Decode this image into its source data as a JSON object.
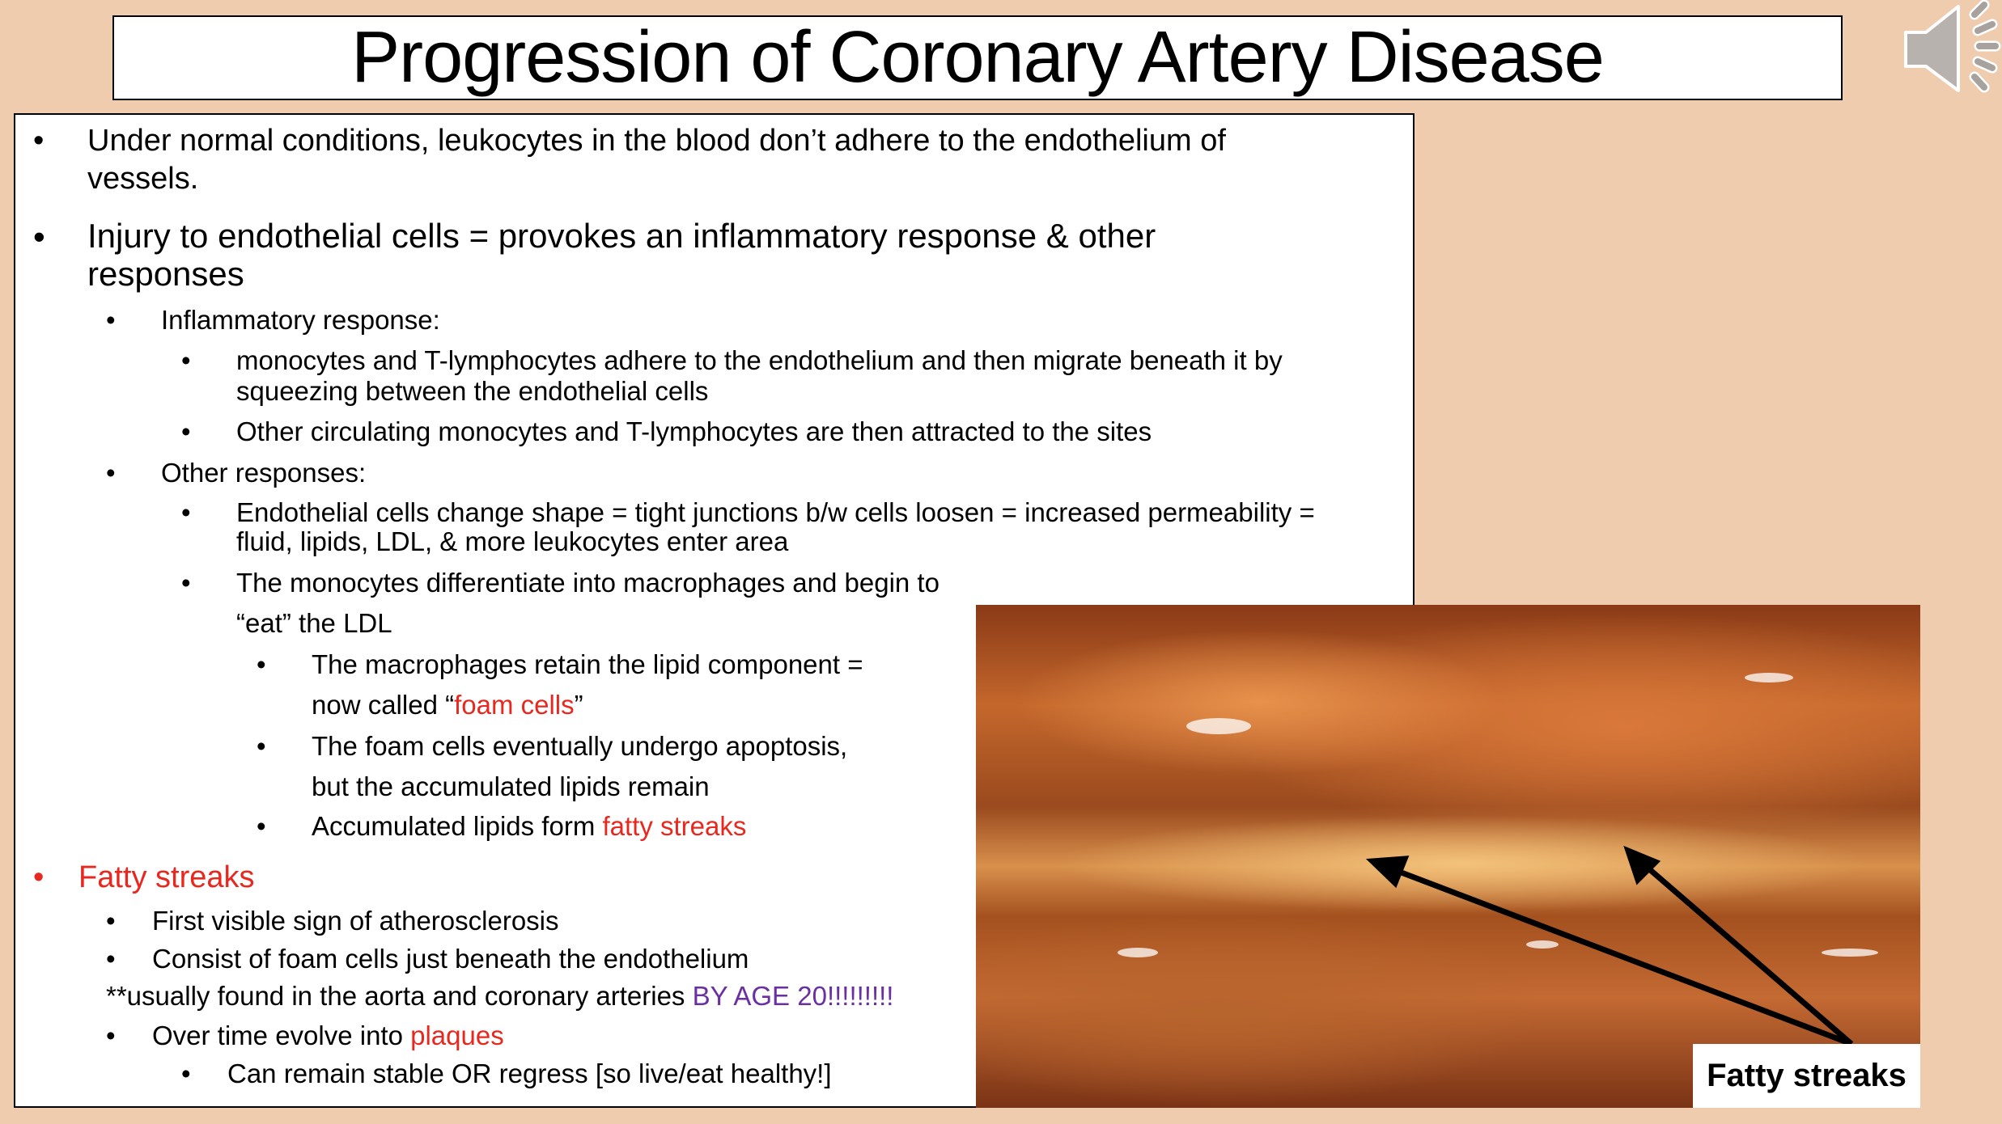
{
  "title": "Progression of Coronary Artery Disease",
  "audio_icon": "speaker-icon",
  "bullets": {
    "l1a_1": "Under normal conditions, leukocytes in the blood don’t adhere to the endothelium of",
    "l1a_2": "vessels.",
    "l1b_1": "Injury to endothelial cells = provokes an inflammatory response & other",
    "l1b_2": "responses",
    "inflam": "Inflammatory response:",
    "inflam_1a": "monocytes and T-lymphocytes adhere to the endothelium and then migrate beneath it by",
    "inflam_1b": "squeezing between the endothelial cells",
    "inflam_2": "Other circulating monocytes and T-lymphocytes are then attracted to the sites",
    "other": "Other responses:",
    "other_1a": "Endothelial cells change shape = tight junctions b/w cells loosen = increased permeability =",
    "other_1b": "fluid, lipids, LDL, & more leukocytes enter area",
    "other_2a": "The monocytes differentiate into macrophages and begin to",
    "other_2b": "“eat” the LDL",
    "mac_1a": "The macrophages retain the lipid component =",
    "mac_1b_pre": "now called “",
    "mac_1b_red": "foam cells",
    "mac_1b_post": "”",
    "mac_2a": "The foam cells eventually undergo apoptosis,",
    "mac_2b": " but the accumulated lipids remain",
    "mac_3_pre": "Accumulated lipids form ",
    "mac_3_red": "fatty streaks",
    "fatty": "Fatty streaks",
    "fatty_1": "First visible sign of atherosclerosis",
    "fatty_2": "Consist of foam cells just beneath the endothelium",
    "fatty_note_pre": "**usually found in the aorta and coronary arteries ",
    "fatty_note_purple": "BY AGE 20!!!!!!!!!",
    "fatty_3_pre": "Over time evolve into ",
    "fatty_3_red": "plaques",
    "fatty_3_sub": "Can remain stable OR regress [so live/eat healthy!]"
  },
  "bullet_char": "•",
  "photo": {
    "label": "Fatty streaks"
  },
  "colors": {
    "background": "#f0ccae",
    "highlight_red": "#e8281e",
    "highlight_purple": "#6a2fa0"
  }
}
